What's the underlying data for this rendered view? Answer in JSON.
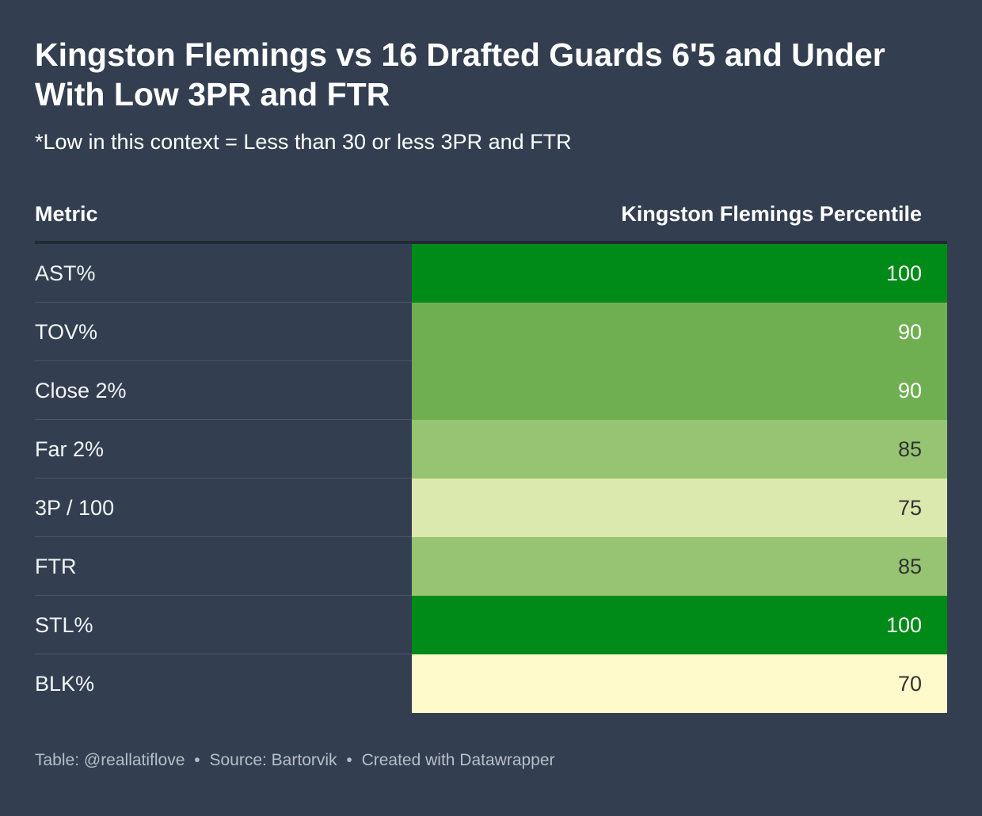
{
  "title": "Kingston Flemings vs 16 Drafted Guards 6'5 and Under With Low 3PR and FTR",
  "subtitle": "*Low in this context = Less than 30 or less 3PR and FTR",
  "chart_data": {
    "type": "table",
    "columns": [
      "Metric",
      "Kingston Flemings Percentile"
    ],
    "rows": [
      {
        "metric": "AST%",
        "value": 100,
        "color": "#008a17",
        "text_color": "#ffffff"
      },
      {
        "metric": "TOV%",
        "value": 90,
        "color": "#6faf52",
        "text_color": "#ffffff"
      },
      {
        "metric": "Close 2%",
        "value": 90,
        "color": "#6faf52",
        "text_color": "#ffffff"
      },
      {
        "metric": "Far 2%",
        "value": 85,
        "color": "#96c473",
        "text_color": "#333333"
      },
      {
        "metric": "3P / 100",
        "value": 75,
        "color": "#dbe8ae",
        "text_color": "#333333"
      },
      {
        "metric": "FTR",
        "value": 85,
        "color": "#96c473",
        "text_color": "#333333"
      },
      {
        "metric": "STL%",
        "value": 100,
        "color": "#008a17",
        "text_color": "#ffffff"
      },
      {
        "metric": "BLK%",
        "value": 70,
        "color": "#fffacb",
        "text_color": "#333333"
      }
    ]
  },
  "footer": {
    "table_credit": "Table: @reallatiflove",
    "separator": "•",
    "source": "Source: Bartorvik",
    "created": "Created with Datawrapper"
  },
  "colors": {
    "background": "#333f50"
  }
}
